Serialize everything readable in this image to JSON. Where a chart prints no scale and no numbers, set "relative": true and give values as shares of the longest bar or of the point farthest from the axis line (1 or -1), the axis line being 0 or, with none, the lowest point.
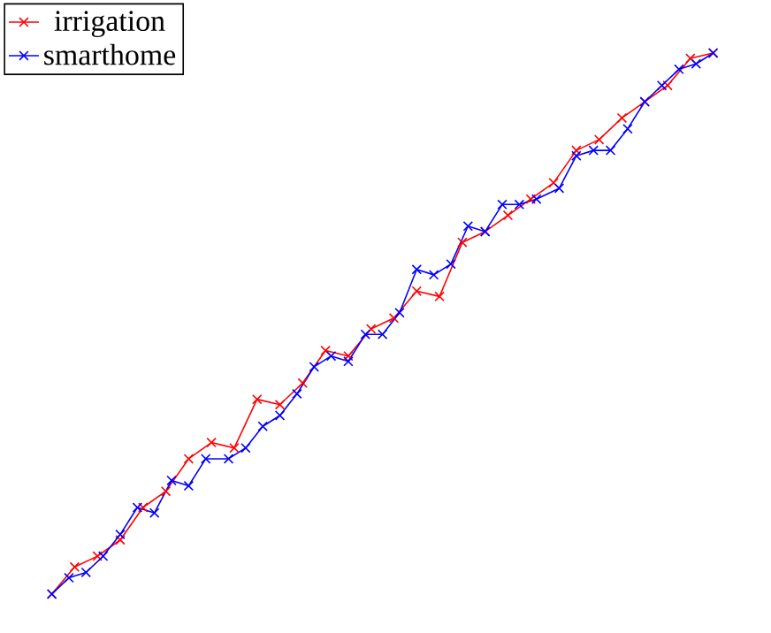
{
  "chart_data": {
    "type": "line",
    "relative": true,
    "marker": "cross",
    "legend": "top left",
    "categories": [
      null,
      null,
      null,
      null,
      null,
      null,
      null,
      null,
      null,
      null,
      null,
      null,
      null,
      null,
      null,
      null,
      null,
      null,
      null,
      null,
      null,
      null,
      null,
      null,
      null,
      null,
      null,
      null,
      null,
      null,
      null,
      null,
      null,
      null,
      null,
      null,
      null,
      null,
      null,
      null,
      null,
      null,
      null,
      null,
      null,
      null,
      null,
      null,
      null,
      null,
      null,
      null,
      null,
      null,
      null,
      null,
      null,
      null,
      null,
      null,
      null,
      null,
      null,
      null,
      null,
      null,
      null,
      null,
      null,
      null,
      null,
      null,
      null,
      null,
      null,
      null,
      null,
      null,
      null,
      null,
      null,
      null,
      null,
      null,
      null,
      null,
      null,
      null,
      null,
      null,
      null,
      null,
      null,
      null,
      null,
      null,
      null,
      null,
      null,
      null,
      null,
      null,
      null,
      null,
      null,
      null,
      null,
      null,
      null,
      null,
      null,
      null,
      null,
      null,
      null,
      null,
      null
    ],
    "series": [
      {
        "name": "irrigation",
        "color": "#ff0000",
        "values": [
          0,
          null,
          null,
          null,
          0.05,
          null,
          null,
          null,
          0.07,
          null,
          null,
          null,
          0.1,
          null,
          null,
          null,
          0.16,
          null,
          null,
          null,
          0.19,
          null,
          null,
          null,
          0.25,
          null,
          null,
          null,
          0.28,
          null,
          null,
          null,
          0.27,
          null,
          null,
          null,
          0.36,
          null,
          null,
          null,
          0.35,
          null,
          null,
          null,
          0.39,
          null,
          null,
          null,
          0.45,
          null,
          null,
          null,
          0.44,
          null,
          null,
          null,
          0.49,
          null,
          null,
          null,
          0.51,
          null,
          null,
          null,
          0.56,
          null,
          null,
          null,
          0.55,
          null,
          null,
          null,
          0.65,
          null,
          null,
          null,
          0.67,
          null,
          null,
          null,
          0.7,
          null,
          null,
          null,
          0.73,
          null,
          null,
          null,
          0.76,
          null,
          null,
          null,
          0.82,
          null,
          null,
          null,
          0.84,
          null,
          null,
          null,
          0.88,
          null,
          null,
          null,
          0.91,
          null,
          null,
          null,
          0.94,
          null,
          null,
          null,
          0.99,
          null,
          null,
          null,
          1
        ]
      },
      {
        "name": "smarthome",
        "color": "#0000ff",
        "values": [
          0,
          null,
          null,
          0.03,
          null,
          null,
          0.04,
          null,
          null,
          0.07,
          null,
          null,
          0.11,
          null,
          null,
          0.16,
          null,
          null,
          0.15,
          null,
          null,
          0.21,
          null,
          null,
          0.2,
          null,
          null,
          0.25,
          null,
          null,
          null,
          0.25,
          null,
          null,
          0.27,
          null,
          null,
          0.31,
          null,
          null,
          0.33,
          null,
          null,
          0.37,
          null,
          null,
          0.42,
          null,
          null,
          0.44,
          null,
          null,
          0.43,
          null,
          null,
          0.48,
          null,
          null,
          0.48,
          null,
          null,
          0.52,
          null,
          null,
          0.6,
          null,
          null,
          0.59,
          null,
          null,
          0.61,
          null,
          null,
          0.68,
          null,
          null,
          0.67,
          null,
          null,
          0.72,
          null,
          null,
          0.72,
          null,
          null,
          0.73,
          null,
          null,
          null,
          0.75,
          null,
          null,
          0.81,
          null,
          null,
          0.82,
          null,
          null,
          0.82,
          null,
          null,
          0.86,
          null,
          null,
          0.91,
          null,
          null,
          0.94,
          null,
          null,
          0.97,
          null,
          null,
          0.98,
          null,
          null,
          1
        ]
      }
    ]
  }
}
